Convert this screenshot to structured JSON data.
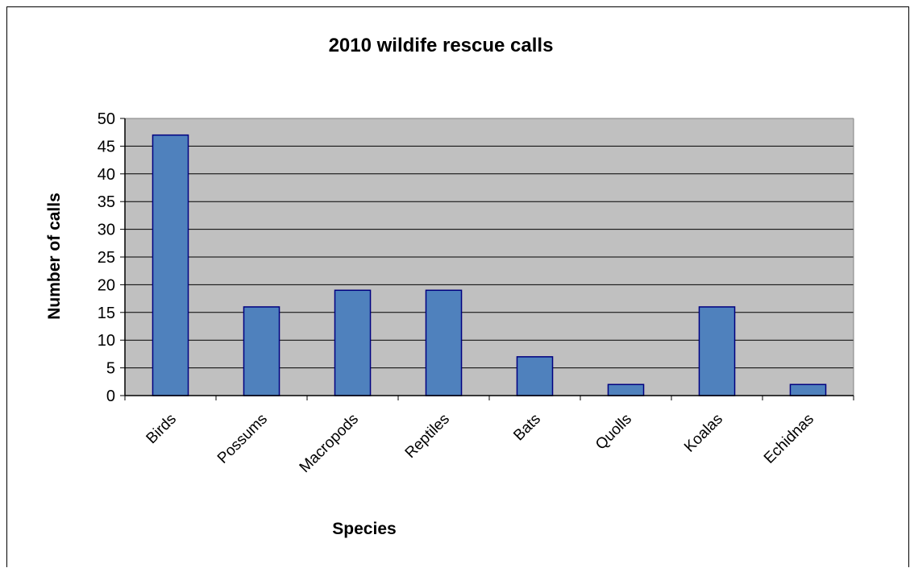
{
  "chart_data": {
    "type": "bar",
    "title": "2010 wildife rescue calls",
    "xlabel": "Species",
    "ylabel": "Number of calls",
    "categories": [
      "Birds",
      "Possums",
      "Macropods",
      "Reptiles",
      "Bats",
      "Quolls",
      "Koalas",
      "Echidnas"
    ],
    "values": [
      47,
      16,
      19,
      19,
      7,
      2,
      16,
      2
    ],
    "ylim": [
      0,
      50
    ],
    "yticks": [
      0,
      5,
      10,
      15,
      20,
      25,
      30,
      35,
      40,
      45,
      50
    ],
    "grid": true,
    "legend": "none",
    "colors": {
      "bar_fill": "#4f81bd",
      "bar_stroke": "#000080",
      "plot_background": "#c0c0c0",
      "gridline": "#000000"
    }
  }
}
